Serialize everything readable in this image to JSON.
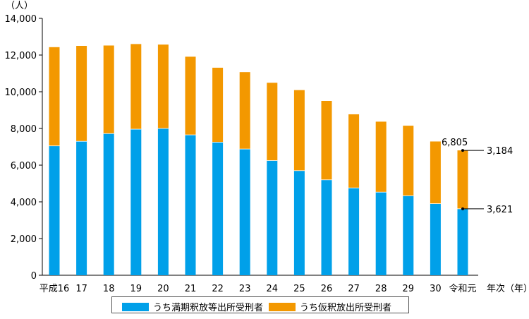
{
  "chart_data": {
    "type": "bar",
    "stacked": true,
    "unit_label": "（人）",
    "x_unit_label": "年次（年）",
    "categories": [
      "平成16",
      "17",
      "18",
      "19",
      "20",
      "21",
      "22",
      "23",
      "24",
      "25",
      "26",
      "27",
      "28",
      "29",
      "30",
      "令和元"
    ],
    "series": [
      {
        "name": "うち満期釈放等出所受刑者",
        "color": "#00a0e9",
        "values": [
          7050,
          7300,
          7720,
          7960,
          8000,
          7650,
          7250,
          6880,
          6250,
          5700,
          5200,
          4760,
          4530,
          4330,
          3900,
          3621
        ]
      },
      {
        "name": "うち仮釈放出所受刑者",
        "color": "#f39800",
        "values": [
          5380,
          5200,
          4800,
          4640,
          4570,
          4260,
          4060,
          4190,
          4240,
          4390,
          4300,
          4010,
          3840,
          3820,
          3390,
          3184
        ]
      }
    ],
    "totals": [
      12430,
      12500,
      12520,
      12600,
      12570,
      11910,
      11310,
      11070,
      10490,
      10090,
      9500,
      8770,
      8370,
      8150,
      7290,
      6805
    ],
    "yticks": [
      "0",
      "2,000",
      "4,000",
      "6,000",
      "8,000",
      "10,000",
      "12,000",
      "14,000"
    ],
    "ylim": [
      0,
      14000
    ],
    "annotations": {
      "total": "6,805",
      "orange": "3,184",
      "blue": "3,621"
    },
    "annotation_colors": {
      "total": "#000000",
      "orange": "#f39800",
      "blue": "#00a0e9"
    }
  }
}
